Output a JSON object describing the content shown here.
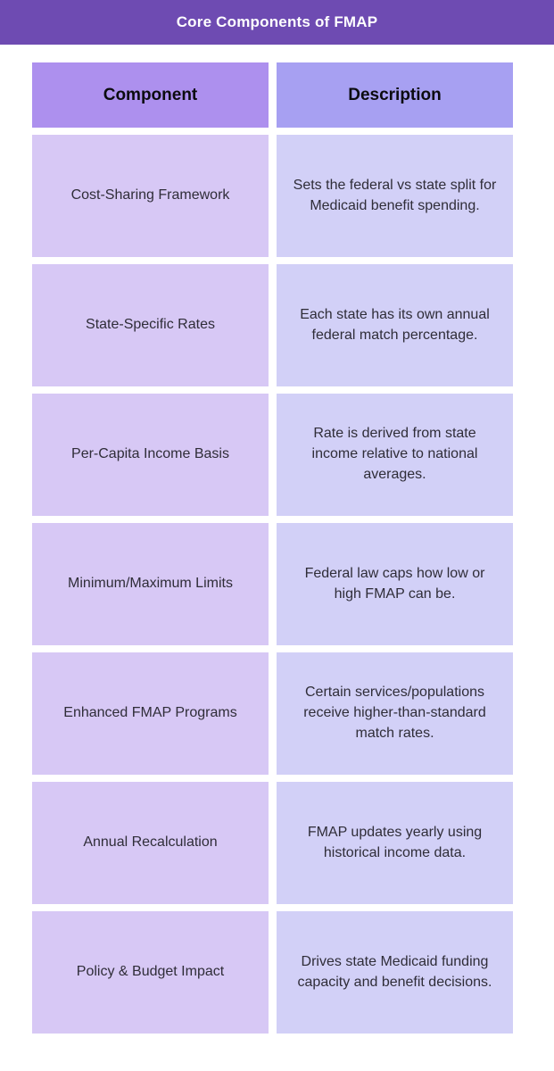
{
  "banner": {
    "title": "Core Components of FMAP"
  },
  "table": {
    "headers": [
      {
        "label": "Component"
      },
      {
        "label": "Description"
      }
    ],
    "rows": [
      {
        "component": "Cost-Sharing Framework",
        "description": "Sets the federal vs state split for Medicaid benefit spending."
      },
      {
        "component": "State-Specific Rates",
        "description": "Each state has its own annual federal match percentage."
      },
      {
        "component": "Per-Capita Income Basis",
        "description": "Rate is derived from state income relative to national averages."
      },
      {
        "component": "Minimum/Maximum Limits",
        "description": "Federal law caps how low or high FMAP can be."
      },
      {
        "component": "Enhanced FMAP Programs",
        "description": "Certain services/populations receive higher-than-standard match rates."
      },
      {
        "component": "Annual Recalculation",
        "description": "FMAP updates yearly using historical income data."
      },
      {
        "component": "Policy & Budget Impact",
        "description": "Drives state Medicaid funding capacity and benefit decisions."
      }
    ]
  },
  "colors": {
    "banner_bg": "#6E4BB2",
    "banner_text": "#FFFFFF",
    "header_component_bg": "#AD90EE",
    "header_description_bg": "#A7A0F2",
    "cell_component_bg": "#D7C8F5",
    "cell_description_bg": "#D2D0F7",
    "header_text": "#0B0B0F",
    "body_text": "#2F2D38"
  },
  "chart_data": {
    "type": "table",
    "title": "Core Components of FMAP",
    "columns": [
      "Component",
      "Description"
    ],
    "rows": [
      [
        "Cost-Sharing Framework",
        "Sets the federal vs state split for Medicaid benefit spending."
      ],
      [
        "State-Specific Rates",
        "Each state has its own annual federal match percentage."
      ],
      [
        "Per-Capita Income Basis",
        "Rate is derived from state income relative to national averages."
      ],
      [
        "Minimum/Maximum Limits",
        "Federal law caps how low or high FMAP can be."
      ],
      [
        "Enhanced FMAP Programs",
        "Certain services/populations receive higher-than-standard match rates."
      ],
      [
        "Annual Recalculation",
        "FMAP updates yearly using historical income data."
      ],
      [
        "Policy & Budget Impact",
        "Drives state Medicaid funding capacity and benefit decisions."
      ]
    ],
    "layout_hints": {
      "header_row": true,
      "column_count": 2,
      "row_count": 7,
      "cell_borders": false,
      "cells_as_tiles_with_gaps": true
    }
  }
}
